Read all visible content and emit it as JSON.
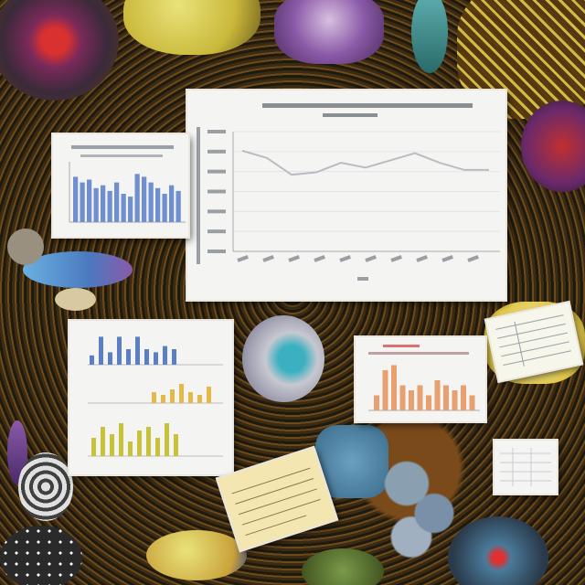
{
  "background": {
    "theme": "organic collage",
    "palette": [
      "#2a1f10",
      "#6b4a1c",
      "#c9a23a",
      "#e3c94a",
      "#5b8fc0",
      "#8a5aa8"
    ]
  },
  "main_chart": {
    "type": "line",
    "title": "",
    "series_color": "#b9bcc0",
    "y": [
      0.62,
      0.59,
      0.52,
      0.53,
      0.57,
      0.55,
      0.58,
      0.61,
      0.57,
      0.54,
      0.54
    ],
    "ylim": [
      0.2,
      0.7
    ]
  },
  "panels": {
    "left_bar": {
      "type": "bar",
      "values": [
        0.8,
        0.7,
        0.75,
        0.6,
        0.65,
        0.55,
        0.7,
        0.5,
        0.45,
        0.85,
        0.8,
        0.7,
        0.6,
        0.5,
        0.65,
        0.55
      ],
      "color": "#6f8fd0"
    },
    "bottom_left_bars_top": {
      "values": [
        0.3,
        0.9,
        0.4,
        0.9,
        0.5,
        0.9,
        0.5,
        0.4,
        0.6,
        0.5
      ],
      "color": "#5b7fc6"
    },
    "bottom_left_bars_mid": {
      "values": [
        0.4,
        0.3,
        0.5,
        0.7,
        0.4,
        0.3,
        0.6
      ],
      "color": "#e3b94a"
    },
    "bottom_left_bars_bot": {
      "values": [
        0.5,
        0.8,
        0.6,
        0.9,
        0.4,
        0.7,
        0.8,
        0.5,
        0.9,
        0.6
      ],
      "color": "#c8c23a"
    },
    "right_bar": {
      "values": [
        0.3,
        0.8,
        0.9,
        0.5,
        0.4,
        0.5,
        0.3,
        0.6,
        0.5,
        0.4,
        0.5,
        0.3
      ],
      "color": "#e8a070"
    }
  }
}
